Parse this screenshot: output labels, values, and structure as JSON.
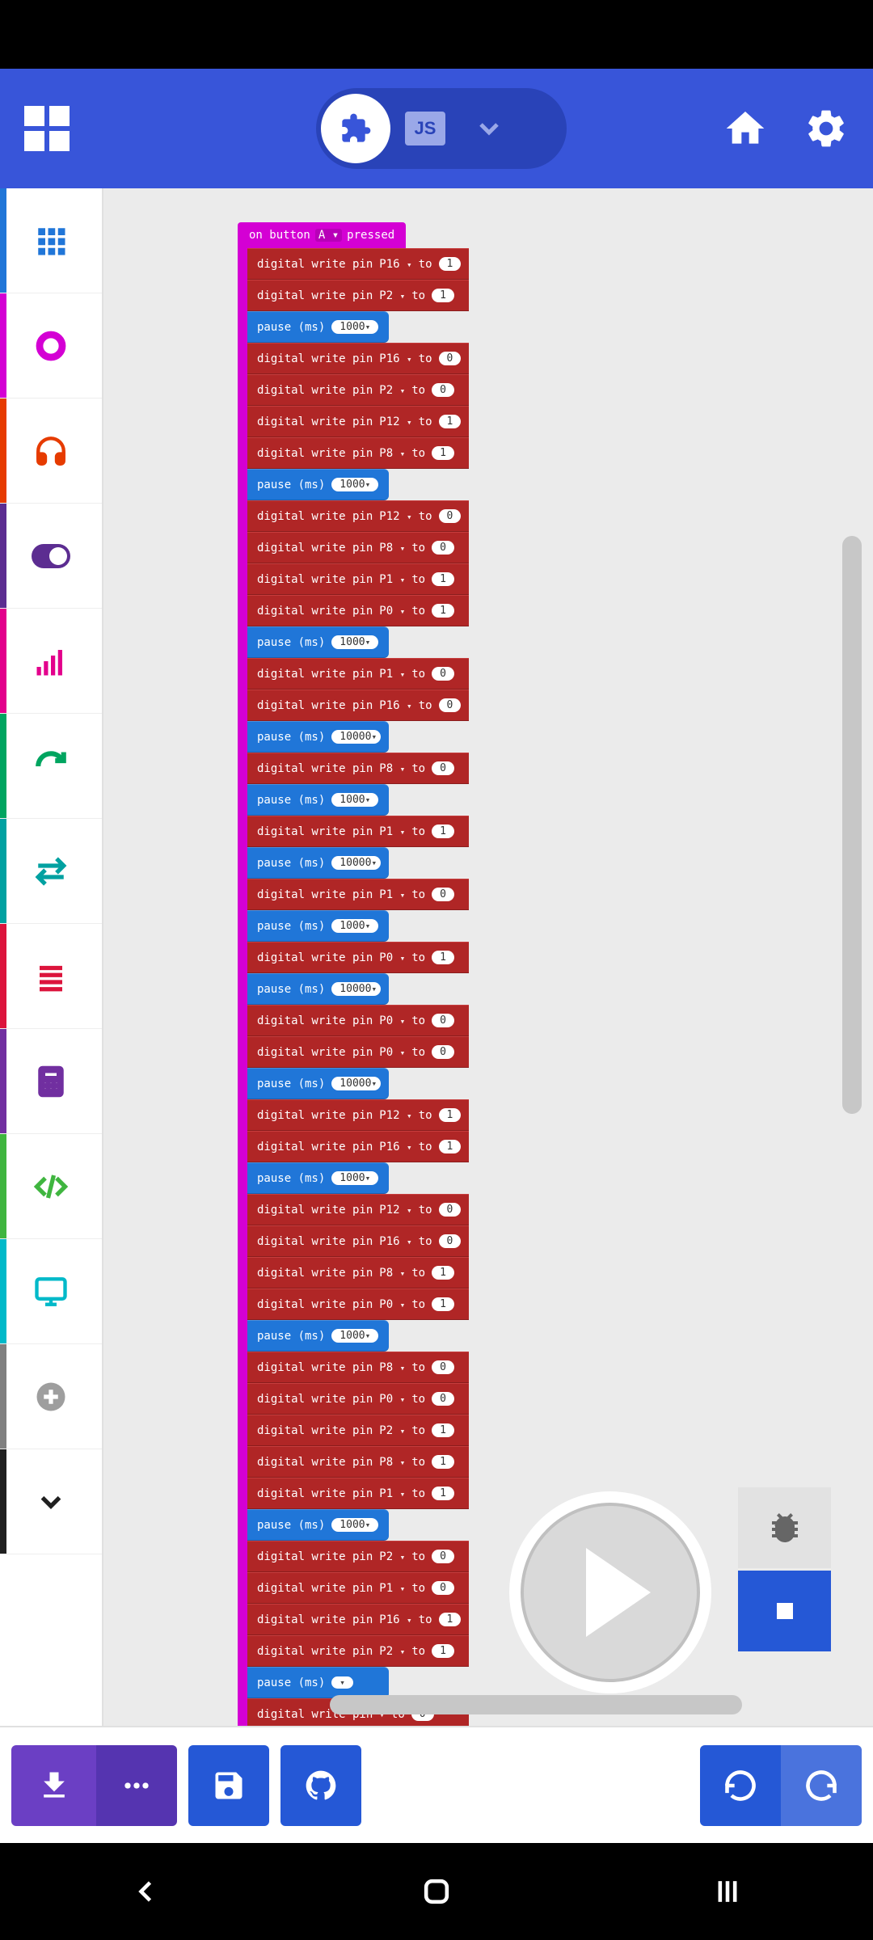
{
  "header": {
    "mode_js_label": "JS"
  },
  "colors": {
    "primary": "#3855d9",
    "event_block": "#d400d4",
    "digital_block": "#b02626",
    "pause_block": "#2076d8",
    "workspace_bg": "#ebebeb"
  },
  "sidebar": {
    "items": [
      {
        "name": "basic",
        "accent": "#2076d8",
        "icon": "grid"
      },
      {
        "name": "input",
        "accent": "#d400d4",
        "icon": "record"
      },
      {
        "name": "music",
        "accent": "#e63b00",
        "icon": "headphones"
      },
      {
        "name": "led",
        "accent": "#5c2d91",
        "icon": "toggle"
      },
      {
        "name": "radio",
        "accent": "#e3008c",
        "icon": "signal"
      },
      {
        "name": "loops",
        "accent": "#00a560",
        "icon": "loop"
      },
      {
        "name": "logic",
        "accent": "#00a1a1",
        "icon": "logic"
      },
      {
        "name": "variables",
        "accent": "#dc143c",
        "icon": "lines"
      },
      {
        "name": "math",
        "accent": "#712fa0",
        "icon": "calculator"
      },
      {
        "name": "advanced",
        "accent": "#3fb53f",
        "icon": "code"
      },
      {
        "name": "display",
        "accent": "#00b9c9",
        "icon": "monitor"
      },
      {
        "name": "extensions",
        "accent": "#808080",
        "icon": "plus"
      },
      {
        "name": "collapse",
        "accent": "#202020",
        "icon": "chevron"
      }
    ]
  },
  "event": {
    "label": "on button",
    "button": "A",
    "action": "pressed"
  },
  "blocks": [
    {
      "type": "digital",
      "label": "digital write pin",
      "pin": "P16",
      "to": "to",
      "val": "1"
    },
    {
      "type": "digital",
      "label": "digital write pin",
      "pin": "P2",
      "to": "to",
      "val": "1"
    },
    {
      "type": "pause",
      "label": "pause (ms)",
      "val": "1000"
    },
    {
      "type": "digital",
      "label": "digital write pin",
      "pin": "P16",
      "to": "to",
      "val": "0"
    },
    {
      "type": "digital",
      "label": "digital write pin",
      "pin": "P2",
      "to": "to",
      "val": "0"
    },
    {
      "type": "digital",
      "label": "digital write pin",
      "pin": "P12",
      "to": "to",
      "val": "1"
    },
    {
      "type": "digital",
      "label": "digital write pin",
      "pin": "P8",
      "to": "to",
      "val": "1"
    },
    {
      "type": "pause",
      "label": "pause (ms)",
      "val": "1000"
    },
    {
      "type": "digital",
      "label": "digital write pin",
      "pin": "P12",
      "to": "to",
      "val": "0"
    },
    {
      "type": "digital",
      "label": "digital write pin",
      "pin": "P8",
      "to": "to",
      "val": "0"
    },
    {
      "type": "digital",
      "label": "digital write pin",
      "pin": "P1",
      "to": "to",
      "val": "1"
    },
    {
      "type": "digital",
      "label": "digital write pin",
      "pin": "P0",
      "to": "to",
      "val": "1"
    },
    {
      "type": "pause",
      "label": "pause (ms)",
      "val": "1000"
    },
    {
      "type": "digital",
      "label": "digital write pin",
      "pin": "P1",
      "to": "to",
      "val": "0"
    },
    {
      "type": "digital",
      "label": "digital write pin",
      "pin": "P16",
      "to": "to",
      "val": "0"
    },
    {
      "type": "pause",
      "label": "pause (ms)",
      "val": "10000"
    },
    {
      "type": "digital",
      "label": "digital write pin",
      "pin": "P8",
      "to": "to",
      "val": "0"
    },
    {
      "type": "pause",
      "label": "pause (ms)",
      "val": "1000"
    },
    {
      "type": "digital",
      "label": "digital write pin",
      "pin": "P1",
      "to": "to",
      "val": "1"
    },
    {
      "type": "pause",
      "label": "pause (ms)",
      "val": "10000"
    },
    {
      "type": "digital",
      "label": "digital write pin",
      "pin": "P1",
      "to": "to",
      "val": "0"
    },
    {
      "type": "pause",
      "label": "pause (ms)",
      "val": "1000"
    },
    {
      "type": "digital",
      "label": "digital write pin",
      "pin": "P0",
      "to": "to",
      "val": "1"
    },
    {
      "type": "pause",
      "label": "pause (ms)",
      "val": "10000"
    },
    {
      "type": "digital",
      "label": "digital write pin",
      "pin": "P0",
      "to": "to",
      "val": "0"
    },
    {
      "type": "digital",
      "label": "digital write pin",
      "pin": "P0",
      "to": "to",
      "val": "0"
    },
    {
      "type": "pause",
      "label": "pause (ms)",
      "val": "10000"
    },
    {
      "type": "digital",
      "label": "digital write pin",
      "pin": "P12",
      "to": "to",
      "val": "1"
    },
    {
      "type": "digital",
      "label": "digital write pin",
      "pin": "P16",
      "to": "to",
      "val": "1"
    },
    {
      "type": "pause",
      "label": "pause (ms)",
      "val": "1000"
    },
    {
      "type": "digital",
      "label": "digital write pin",
      "pin": "P12",
      "to": "to",
      "val": "0"
    },
    {
      "type": "digital",
      "label": "digital write pin",
      "pin": "P16",
      "to": "to",
      "val": "0"
    },
    {
      "type": "digital",
      "label": "digital write pin",
      "pin": "P8",
      "to": "to",
      "val": "1"
    },
    {
      "type": "digital",
      "label": "digital write pin",
      "pin": "P0",
      "to": "to",
      "val": "1"
    },
    {
      "type": "pause",
      "label": "pause (ms)",
      "val": "1000"
    },
    {
      "type": "digital",
      "label": "digital write pin",
      "pin": "P8",
      "to": "to",
      "val": "0"
    },
    {
      "type": "digital",
      "label": "digital write pin",
      "pin": "P0",
      "to": "to",
      "val": "0"
    },
    {
      "type": "digital",
      "label": "digital write pin",
      "pin": "P2",
      "to": "to",
      "val": "1"
    },
    {
      "type": "digital",
      "label": "digital write pin",
      "pin": "P8",
      "to": "to",
      "val": "1"
    },
    {
      "type": "digital",
      "label": "digital write pin",
      "pin": "P1",
      "to": "to",
      "val": "1"
    },
    {
      "type": "pause",
      "label": "pause (ms)",
      "val": "1000"
    },
    {
      "type": "digital",
      "label": "digital write pin",
      "pin": "P2",
      "to": "to",
      "val": "0"
    },
    {
      "type": "digital",
      "label": "digital write pin",
      "pin": "P1",
      "to": "to",
      "val": "0"
    },
    {
      "type": "digital",
      "label": "digital write pin",
      "pin": "P16",
      "to": "to",
      "val": "1"
    },
    {
      "type": "digital",
      "label": "digital write pin",
      "pin": "P2",
      "to": "to",
      "val": "1"
    },
    {
      "type": "pause",
      "label": "pause (ms)",
      "val": ""
    },
    {
      "type": "digital",
      "label": "digital write pin",
      "pin": "",
      "to": "to",
      "val": "0"
    }
  ]
}
